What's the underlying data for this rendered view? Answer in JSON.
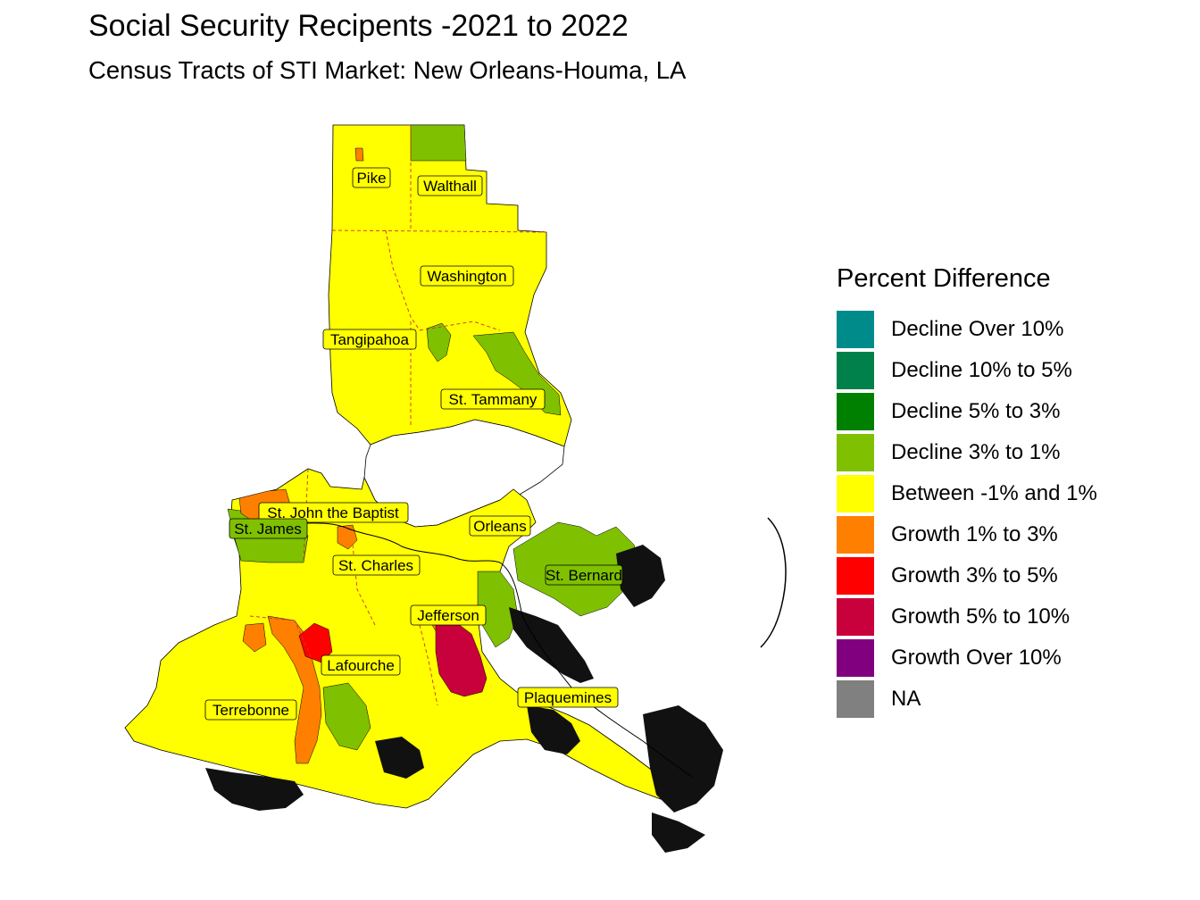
{
  "title": "Social Security Recipents -2021 to 2022",
  "subtitle": "Census Tracts of STI Market: New Orleans-Houma, LA",
  "legend": {
    "title": "Percent Difference",
    "items": [
      {
        "label": "Decline Over 10%",
        "color": "#008B8B"
      },
      {
        "label": "Decline 10% to 5%",
        "color": "#00804A"
      },
      {
        "label": "Decline 5% to 3%",
        "color": "#008000"
      },
      {
        "label": "Decline 3% to 1%",
        "color": "#7FC000"
      },
      {
        "label": "Between -1% and 1%",
        "color": "#FFFF00"
      },
      {
        "label": "Growth 1% to 3%",
        "color": "#FF8000"
      },
      {
        "label": "Growth 3% to 5%",
        "color": "#FF0000"
      },
      {
        "label": "Growth 5% to 10%",
        "color": "#C8003C"
      },
      {
        "label": "Growth Over 10%",
        "color": "#800080"
      },
      {
        "label": "NA",
        "color": "#808080"
      }
    ]
  },
  "counties": [
    {
      "name": "Pike"
    },
    {
      "name": "Walthall"
    },
    {
      "name": "Washington"
    },
    {
      "name": "Tangipahoa"
    },
    {
      "name": "St. Tammany"
    },
    {
      "name": "St. John the Baptist"
    },
    {
      "name": "St. James"
    },
    {
      "name": "Orleans"
    },
    {
      "name": "St. Charles"
    },
    {
      "name": "St. Bernard"
    },
    {
      "name": "Jefferson"
    },
    {
      "name": "Lafourche"
    },
    {
      "name": "Plaquemines"
    },
    {
      "name": "Terrebonne"
    }
  ]
}
